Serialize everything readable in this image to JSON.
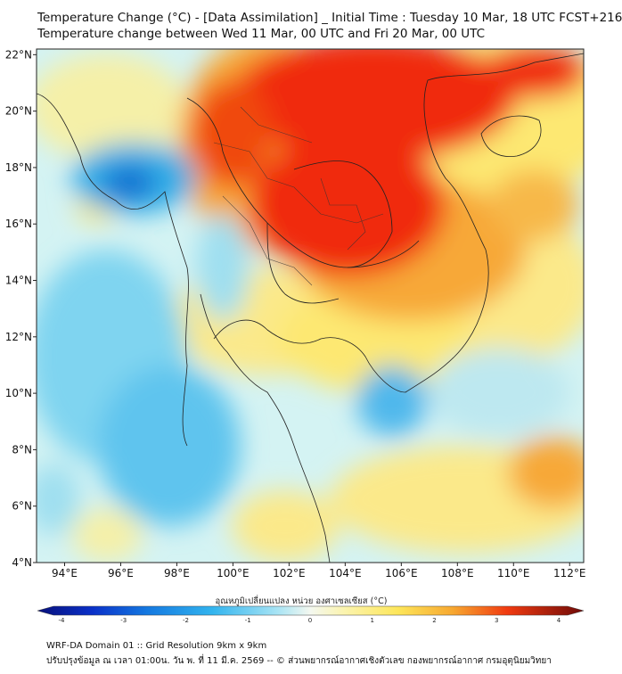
{
  "title_line1": "Temperature Change (°C) - [Data Assimilation] _ Initial Time : Tuesday 10 Mar, 18 UTC FCST+216",
  "title_line2": "Temperature change between Wed 11 Mar, 00 UTC and Fri 20 Mar, 00 UTC",
  "map": {
    "lon_min": 93,
    "lon_max": 112.5,
    "lat_min": 4,
    "lat_max": 22.2,
    "lon_ticks": [
      {
        "v": 94,
        "label": "94°E"
      },
      {
        "v": 96,
        "label": "96°E"
      },
      {
        "v": 98,
        "label": "98°E"
      },
      {
        "v": 100,
        "label": "100°E"
      },
      {
        "v": 102,
        "label": "102°E"
      },
      {
        "v": 104,
        "label": "104°E"
      },
      {
        "v": 106,
        "label": "106°E"
      },
      {
        "v": 108,
        "label": "108°E"
      },
      {
        "v": 110,
        "label": "110°E"
      },
      {
        "v": 112,
        "label": "112°E"
      }
    ],
    "lat_ticks": [
      {
        "v": 4,
        "label": "4°N"
      },
      {
        "v": 6,
        "label": "6°N"
      },
      {
        "v": 8,
        "label": "8°N"
      },
      {
        "v": 10,
        "label": "10°N"
      },
      {
        "v": 12,
        "label": "12°N"
      },
      {
        "v": 14,
        "label": "14°N"
      },
      {
        "v": 16,
        "label": "16°N"
      },
      {
        "v": 18,
        "label": "18°N"
      },
      {
        "v": 20,
        "label": "20°N"
      },
      {
        "v": 22,
        "label": "22°N"
      }
    ]
  },
  "colorbar": {
    "title": "อุณหภูมิเปลี่ยนแปลง หน่วย องศาเซลเซียส (°C)",
    "min": -4,
    "max": 4,
    "ticks": [
      {
        "v": -4,
        "label": "-4"
      },
      {
        "v": -3,
        "label": "-3"
      },
      {
        "v": -2,
        "label": "-2"
      },
      {
        "v": -1,
        "label": "-1"
      },
      {
        "v": 0,
        "label": "0"
      },
      {
        "v": 1,
        "label": "1"
      },
      {
        "v": 2,
        "label": "2"
      },
      {
        "v": 3,
        "label": "3"
      },
      {
        "v": 4,
        "label": "4"
      }
    ]
  },
  "footer_line1": "WRF-DA Domain 01 :: Grid Resolution 9km x 9km",
  "footer_line2": "ปรับปรุงข้อมูล ณ เวลา 01:00น. วัน พ. ที่ 11 มี.ค. 2569 -- © ส่วนพยากรณ์อากาศเชิงตัวเลข กองพยากรณ์อากาศ กรมอุตุนิยมวิทยา"
}
